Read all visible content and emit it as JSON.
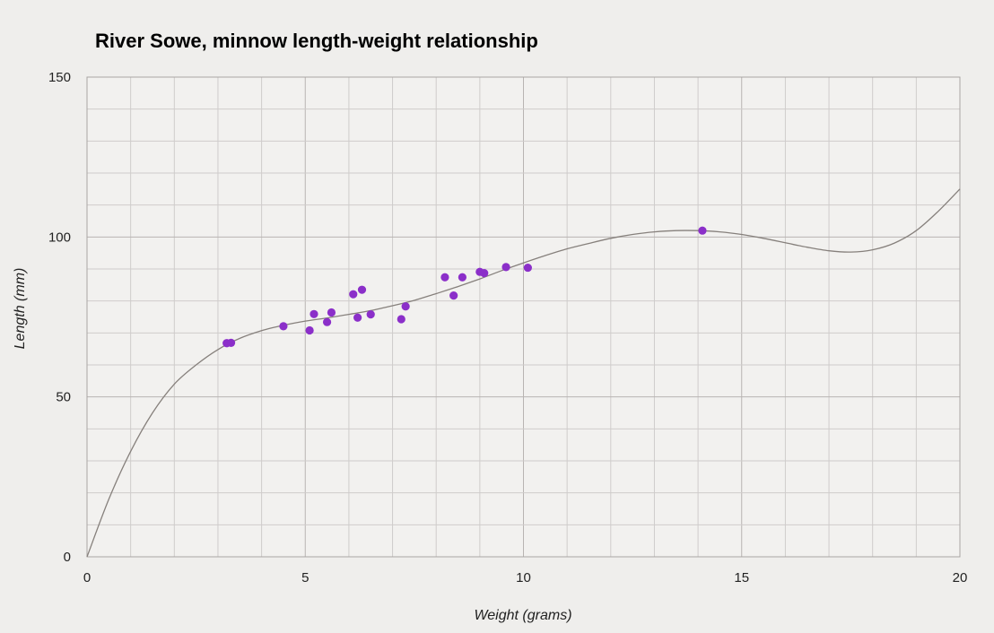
{
  "chart_data": {
    "type": "scatter",
    "title": "River Sowe, minnow length-weight relationship",
    "xlabel": "Weight (grams)",
    "ylabel": "Length (mm)",
    "xlim": [
      0,
      20
    ],
    "ylim": [
      0,
      150
    ],
    "x_ticks": [
      0,
      5,
      10,
      15,
      20
    ],
    "y_ticks": [
      0,
      50,
      100,
      150
    ],
    "grid": true,
    "legend": "none",
    "series": [
      {
        "points": [
          {
            "x": 3.2,
            "y": 66.8
          },
          {
            "x": 3.3,
            "y": 66.9
          },
          {
            "x": 4.5,
            "y": 72.1
          },
          {
            "x": 5.1,
            "y": 70.8
          },
          {
            "x": 5.2,
            "y": 75.9
          },
          {
            "x": 5.5,
            "y": 73.4
          },
          {
            "x": 5.6,
            "y": 76.4
          },
          {
            "x": 6.1,
            "y": 82.1
          },
          {
            "x": 6.2,
            "y": 74.8
          },
          {
            "x": 6.3,
            "y": 83.5
          },
          {
            "x": 6.5,
            "y": 75.8
          },
          {
            "x": 7.2,
            "y": 74.3
          },
          {
            "x": 7.3,
            "y": 78.3
          },
          {
            "x": 8.2,
            "y": 87.4
          },
          {
            "x": 8.4,
            "y": 81.7
          },
          {
            "x": 8.6,
            "y": 87.4
          },
          {
            "x": 9.0,
            "y": 89.1
          },
          {
            "x": 9.1,
            "y": 88.7
          },
          {
            "x": 9.6,
            "y": 90.6
          },
          {
            "x": 10.1,
            "y": 90.4
          },
          {
            "x": 14.1,
            "y": 102.0
          }
        ]
      }
    ],
    "trendline": {
      "type": "polynomial",
      "degree": 4,
      "x": [
        0,
        0.5,
        1,
        1.5,
        2,
        2.5,
        3,
        3.5,
        4,
        4.5,
        5,
        5.5,
        6,
        6.5,
        7,
        7.5,
        8,
        8.5,
        9,
        9.5,
        10,
        10.5,
        11,
        11.5,
        12,
        12.5,
        13,
        13.5,
        14,
        14.5,
        15,
        15.5,
        16,
        16.5,
        17,
        17.5,
        18,
        18.5,
        19,
        19.5,
        20
      ],
      "y": [
        0,
        18,
        33,
        45,
        54,
        60,
        64.8,
        68.3,
        70.7,
        72.4,
        73.7,
        74.7,
        75.8,
        77,
        78.5,
        80.2,
        82.3,
        84.5,
        86.9,
        89.5,
        91.9,
        94.2,
        96.3,
        98,
        99.6,
        100.8,
        101.6,
        102,
        102,
        101.6,
        100.8,
        99.6,
        98.2,
        96.8,
        95.7,
        95.3,
        96,
        98.1,
        102,
        108,
        115
      ]
    },
    "marker_color": "#8b2fc9",
    "line_color": "#86807c",
    "grid_color": "#cfcccb"
  }
}
